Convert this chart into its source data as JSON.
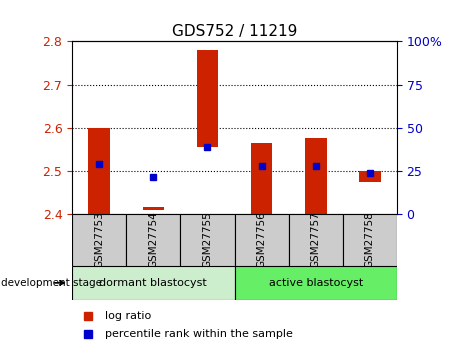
{
  "title": "GDS752 / 11219",
  "samples": [
    "GSM27753",
    "GSM27754",
    "GSM27755",
    "GSM27756",
    "GSM27757",
    "GSM27758"
  ],
  "bar_bottoms": [
    2.4,
    2.41,
    2.555,
    2.4,
    2.4,
    2.475
  ],
  "bar_tops": [
    2.6,
    2.415,
    2.78,
    2.565,
    2.575,
    2.5
  ],
  "percentile_vals": [
    2.515,
    2.485,
    2.556,
    2.51,
    2.512,
    2.495
  ],
  "ylim": [
    2.4,
    2.8
  ],
  "yticks": [
    2.4,
    2.5,
    2.6,
    2.7,
    2.8
  ],
  "right_yticks": [
    0,
    25,
    50,
    75,
    100
  ],
  "right_ylabels": [
    "0",
    "25",
    "50",
    "75",
    "100%"
  ],
  "bar_color": "#cc2200",
  "percentile_color": "#0000cc",
  "group1_label": "dormant blastocyst",
  "group2_label": "active blastocyst",
  "group1_color": "#cceecc",
  "group2_color": "#66ee66",
  "tick_bg_color": "#cccccc",
  "legend_log_ratio": "log ratio",
  "legend_percentile": "percentile rank within the sample",
  "dev_stage_label": "development stage"
}
